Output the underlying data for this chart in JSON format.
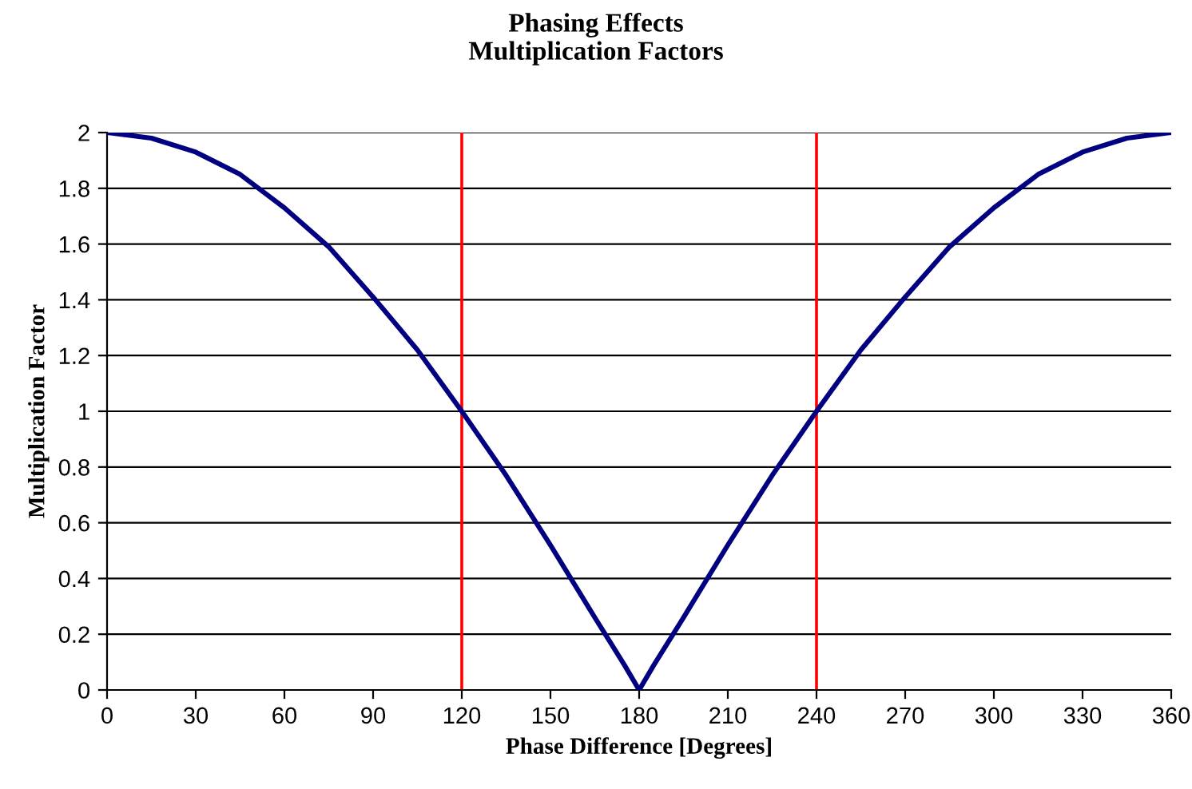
{
  "chart_data": {
    "type": "line",
    "title": "Phasing Effects\nMultiplication Factors",
    "xlabel": "Phase Difference [Degrees]",
    "ylabel": "Multiplication Factor",
    "x": [
      0,
      15,
      30,
      45,
      60,
      75,
      90,
      105,
      120,
      135,
      150,
      165,
      175,
      180,
      185,
      195,
      210,
      225,
      240,
      255,
      270,
      285,
      300,
      315,
      330,
      345,
      360
    ],
    "series": [
      {
        "color": "#000080",
        "values": [
          2.0,
          1.98,
          1.93,
          1.85,
          1.73,
          1.59,
          1.41,
          1.22,
          1.0,
          0.77,
          0.52,
          0.26,
          0.09,
          0.0,
          0.09,
          0.26,
          0.52,
          0.77,
          1.0,
          1.22,
          1.41,
          1.59,
          1.73,
          1.85,
          1.93,
          1.98,
          2.0
        ]
      }
    ],
    "xlim": [
      0,
      360
    ],
    "xticks": [
      0,
      30,
      60,
      90,
      120,
      150,
      180,
      210,
      240,
      270,
      300,
      330,
      360
    ],
    "ylim": [
      0,
      2
    ],
    "yticks": [
      0,
      0.2,
      0.4,
      0.6,
      0.8,
      1,
      1.2,
      1.4,
      1.6,
      1.8,
      2
    ],
    "ref_lines": [
      {
        "axis": "x",
        "value": 120,
        "color": "#ff0000"
      },
      {
        "axis": "x",
        "value": 240,
        "color": "#ff0000"
      }
    ],
    "grid": "y",
    "legend": false,
    "marker": "none",
    "line_style": "solid"
  }
}
